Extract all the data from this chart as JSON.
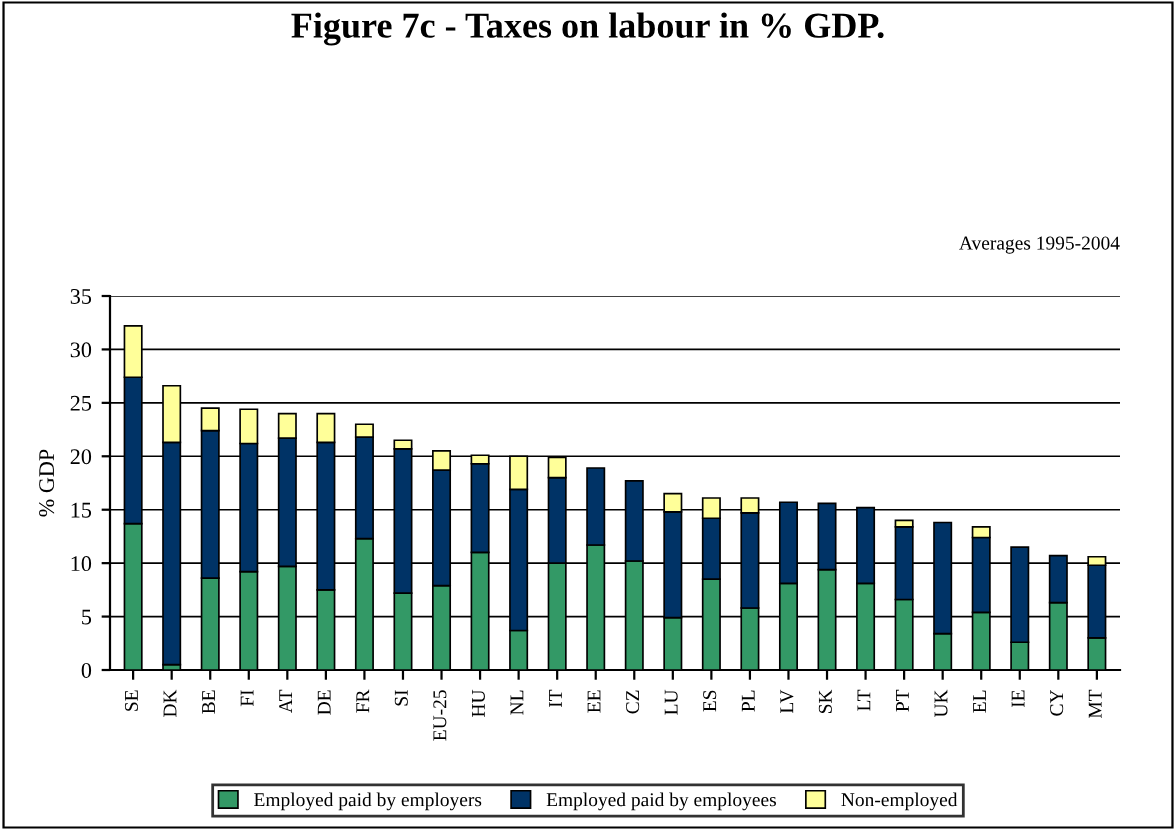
{
  "chart_data": {
    "type": "bar",
    "stacked": true,
    "title": "Figure 7c - Taxes on labour in % GDP.",
    "ylabel": "% GDP",
    "annotations": [
      "Averages 1995-2004"
    ],
    "categories": [
      "SE",
      "DK",
      "BE",
      "FI",
      "AT",
      "DE",
      "FR",
      "SI",
      "EU-25",
      "HU",
      "NL",
      "IT",
      "EE",
      "CZ",
      "LU",
      "ES",
      "PL",
      "LV",
      "SK",
      "LT",
      "PT",
      "UK",
      "EL",
      "IE",
      "CY",
      "MT"
    ],
    "series": [
      {
        "name": "Employed paid by employers",
        "color": "#339966",
        "values": [
          13.7,
          0.5,
          8.6,
          9.2,
          9.7,
          7.5,
          12.3,
          7.2,
          7.9,
          11.0,
          3.7,
          10.0,
          11.7,
          10.2,
          4.9,
          8.5,
          5.8,
          8.1,
          9.4,
          8.1,
          6.6,
          3.4,
          5.4,
          2.6,
          6.3,
          3.0
        ]
      },
      {
        "name": "Employed paid by employees",
        "color": "#003366",
        "values": [
          13.7,
          20.8,
          13.8,
          12.0,
          12.0,
          13.8,
          9.5,
          13.5,
          10.8,
          8.3,
          13.2,
          8.0,
          7.2,
          7.5,
          9.9,
          5.7,
          8.9,
          7.6,
          6.2,
          7.1,
          6.8,
          10.4,
          7.0,
          8.9,
          4.4,
          6.8
        ]
      },
      {
        "name": "Non-employed",
        "color": "#ffff99",
        "values": [
          4.8,
          5.3,
          2.1,
          3.2,
          2.3,
          2.7,
          1.2,
          0.8,
          1.8,
          0.8,
          3.1,
          1.9,
          null,
          null,
          1.7,
          1.9,
          1.4,
          null,
          null,
          null,
          0.6,
          null,
          1.0,
          null,
          null,
          0.8
        ]
      }
    ],
    "ylim": [
      0,
      35
    ],
    "yticks": [
      0,
      5,
      10,
      15,
      20,
      25,
      30,
      35
    ],
    "grid": "y",
    "legend": "bottom"
  }
}
